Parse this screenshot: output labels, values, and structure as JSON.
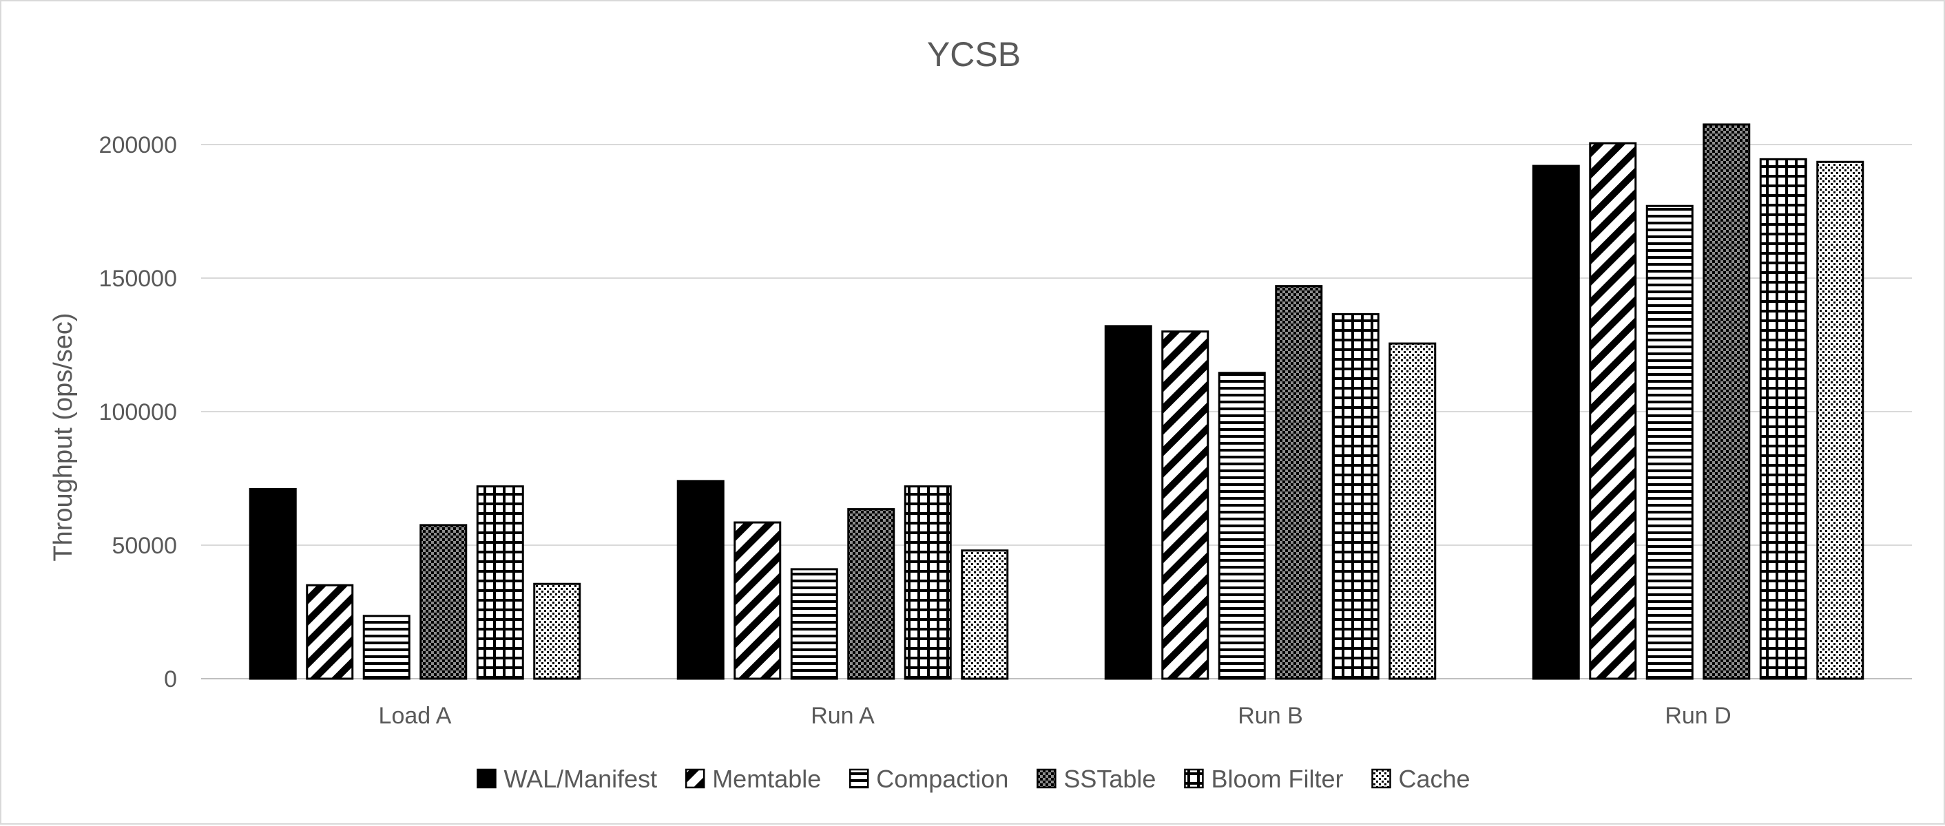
{
  "chart_data": {
    "type": "bar",
    "title": "YCSB",
    "xlabel": "",
    "ylabel": "Throughput (ops/sec)",
    "ylim": [
      0,
      200000
    ],
    "yticks": [
      "0",
      "50000",
      "100000",
      "150000",
      "200000"
    ],
    "grid": true,
    "legend_position": "bottom",
    "categories": [
      "Load A",
      "Run A",
      "Run B",
      "Run D"
    ],
    "series": [
      {
        "name": "WAL/Manifest",
        "pattern": "solid",
        "values": [
          71000,
          74000,
          132000,
          192000
        ]
      },
      {
        "name": "Memtable",
        "pattern": "diagonal",
        "values": [
          35000,
          58500,
          130000,
          200500
        ]
      },
      {
        "name": "Compaction",
        "pattern": "horizontal",
        "values": [
          23500,
          41000,
          114500,
          177000
        ]
      },
      {
        "name": "SSTable",
        "pattern": "checker",
        "values": [
          57500,
          63500,
          147000,
          207500
        ]
      },
      {
        "name": "Bloom Filter",
        "pattern": "grid",
        "values": [
          72000,
          72000,
          136500,
          194500
        ]
      },
      {
        "name": "Cache",
        "pattern": "dots",
        "values": [
          35500,
          48000,
          125500,
          193500
        ]
      }
    ]
  }
}
